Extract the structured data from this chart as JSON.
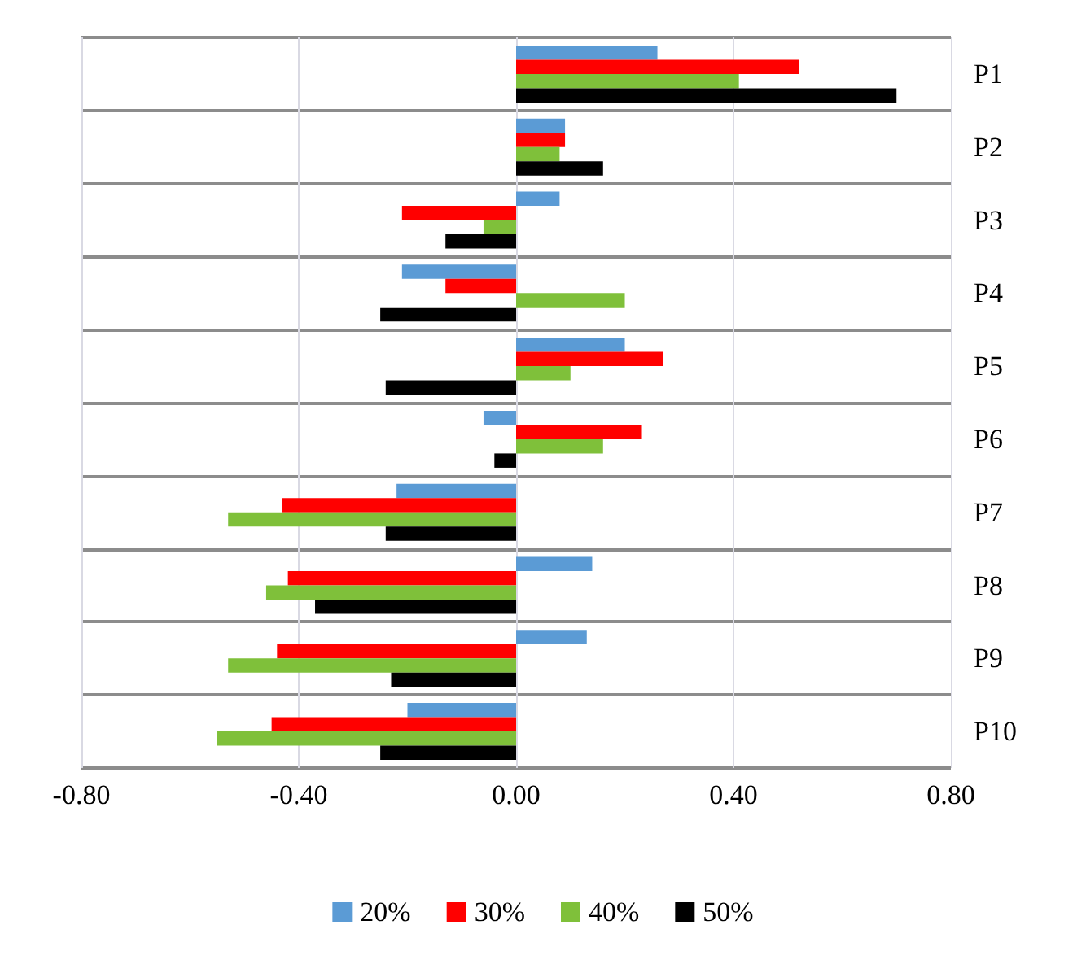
{
  "chart_data": {
    "type": "bar",
    "orientation": "horizontal",
    "categories": [
      "P1",
      "P2",
      "P3",
      "P4",
      "P5",
      "P6",
      "P7",
      "P8",
      "P9",
      "P10"
    ],
    "series": [
      {
        "name": "20%",
        "color": "#5b9bd5",
        "values": [
          0.26,
          0.09,
          0.08,
          -0.21,
          0.2,
          -0.06,
          -0.22,
          0.14,
          0.13,
          -0.2
        ]
      },
      {
        "name": "30%",
        "color": "#ff0000",
        "values": [
          0.52,
          0.09,
          -0.21,
          -0.13,
          0.27,
          0.23,
          -0.43,
          -0.42,
          -0.44,
          -0.45
        ]
      },
      {
        "name": "40%",
        "color": "#7fc03a",
        "values": [
          0.41,
          0.08,
          -0.06,
          0.2,
          0.1,
          0.16,
          -0.53,
          -0.46,
          -0.53,
          -0.55
        ]
      },
      {
        "name": "50%",
        "color": "#000000",
        "values": [
          0.7,
          0.16,
          -0.13,
          -0.25,
          -0.24,
          -0.04,
          -0.24,
          -0.37,
          -0.23,
          -0.25
        ]
      }
    ],
    "xlim": [
      -0.8,
      0.8
    ],
    "xticks": [
      {
        "value": -0.8,
        "label": "-0.80"
      },
      {
        "value": -0.4,
        "label": "-0.40"
      },
      {
        "value": 0,
        "label": "0.00"
      },
      {
        "value": 0.4,
        "label": "0.40"
      },
      {
        "value": 0.8,
        "label": "0.80"
      }
    ],
    "grid": true,
    "legend": "bottom"
  }
}
